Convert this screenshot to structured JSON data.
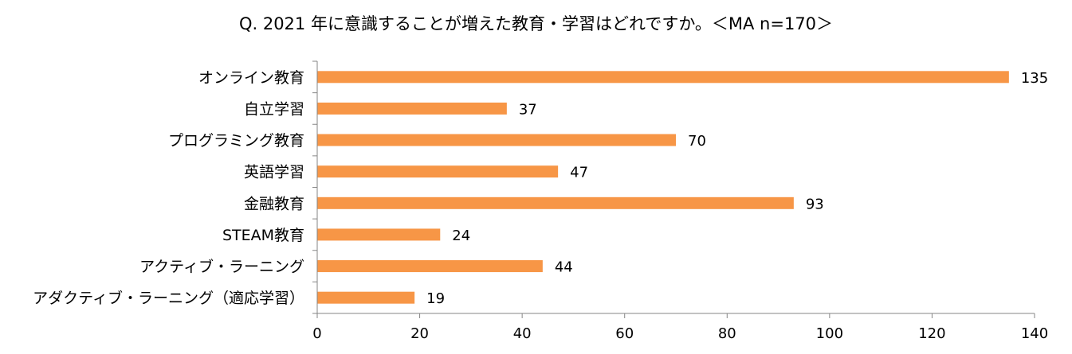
{
  "chart_data": {
    "type": "bar",
    "orientation": "horizontal",
    "title": "Q. 2021 年に意識することが増えた教育・学習はどれですか。＜MA n=170＞",
    "categories": [
      "オンライン教育",
      "自立学習",
      "プログラミング教育",
      "英語学習",
      "金融教育",
      "STEAM教育",
      "アクティブ・ラーニング",
      "アダクティブ・ラーニング（適応学習）"
    ],
    "values": [
      135,
      37,
      70,
      47,
      93,
      24,
      44,
      19
    ],
    "xlabel": "",
    "ylabel": "",
    "xlim": [
      0,
      140
    ],
    "x_ticks": [
      0,
      20,
      40,
      60,
      80,
      100,
      120,
      140
    ],
    "grid": false,
    "legend": "none",
    "bar_color": "#F79646",
    "axis_color": "#868686"
  }
}
